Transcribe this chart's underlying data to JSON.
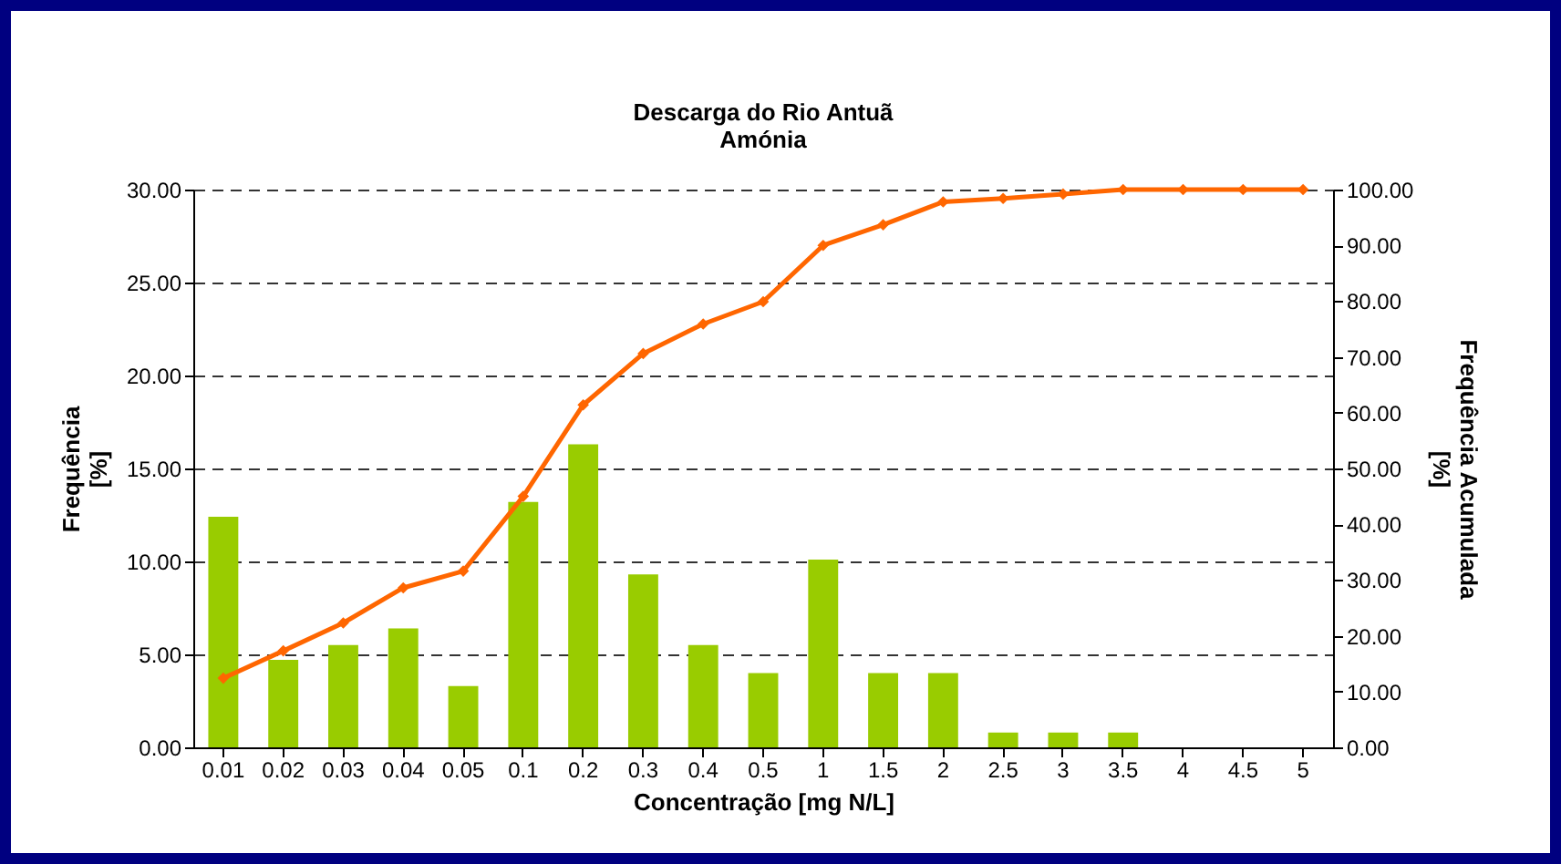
{
  "chart_data": {
    "type": "bar",
    "title": "Descarga do Rio Antuã\nAmónia",
    "xlabel": "Concentração [mg N/L]",
    "ylabel": "Frequência\n[%]",
    "y2label": "Frequência Acumulada\n[%]",
    "categories": [
      "0.01",
      "0.02",
      "0.03",
      "0.04",
      "0.05",
      "0.1",
      "0.2",
      "0.3",
      "0.4",
      "0.5",
      "1",
      "1.5",
      "2",
      "2.5",
      "3",
      "3.5",
      "4",
      "4.5",
      "5"
    ],
    "series": [
      {
        "color": "#99cc00",
        "values": [
          12.4,
          4.7,
          5.5,
          6.4,
          3.3,
          13.2,
          16.3,
          9.3,
          5.5,
          4.0,
          10.1,
          4.0,
          4.0,
          0.8,
          0.8,
          0.8,
          0,
          0,
          0
        ]
      },
      {
        "type": "line",
        "axis": "y2",
        "color": "#ff6600",
        "values": [
          12.4,
          17.3,
          22.3,
          28.6,
          31.6,
          45.0,
          61.4,
          70.6,
          75.9,
          79.9,
          90.0,
          93.7,
          97.8,
          98.4,
          99.2,
          100,
          100,
          100,
          100
        ]
      }
    ],
    "ylim": [
      0,
      30
    ],
    "yticks": [
      {
        "value": 0,
        "label": "0.00"
      },
      {
        "value": 5,
        "label": "5.00"
      },
      {
        "value": 10,
        "label": "10.00"
      },
      {
        "value": 15,
        "label": "15.00"
      },
      {
        "value": 20,
        "label": "20.00"
      },
      {
        "value": 25,
        "label": "25.00"
      },
      {
        "value": 30,
        "label": "30.00"
      }
    ],
    "y2lim": [
      0,
      100
    ],
    "y2ticks": [
      {
        "value": 0,
        "label": "0.00"
      },
      {
        "value": 10,
        "label": "10.00"
      },
      {
        "value": 20,
        "label": "20.00"
      },
      {
        "value": 30,
        "label": "30.00"
      },
      {
        "value": 40,
        "label": "40.00"
      },
      {
        "value": 50,
        "label": "50.00"
      },
      {
        "value": 60,
        "label": "60.00"
      },
      {
        "value": 70,
        "label": "70.00"
      },
      {
        "value": 80,
        "label": "80.00"
      },
      {
        "value": 90,
        "label": "90.00"
      },
      {
        "value": 100,
        "label": "100.00"
      }
    ],
    "grid": "y",
    "marker": "diamond",
    "line_style": "solid",
    "legend": false
  }
}
